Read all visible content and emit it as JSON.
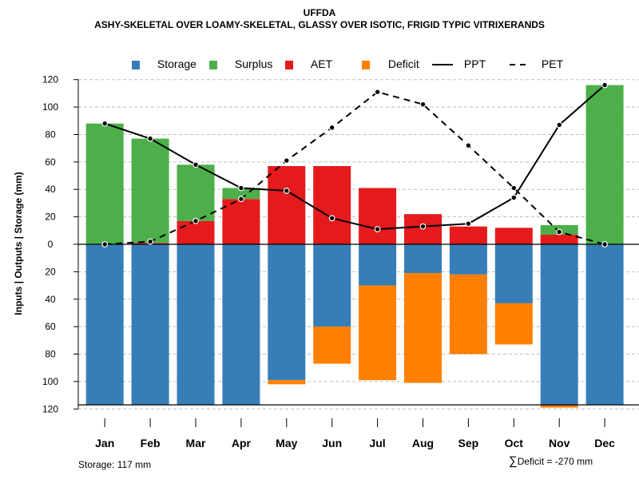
{
  "title": "UFFDA",
  "subtitle": "ASHY-SKELETAL OVER LOAMY-SKELETAL, GLASSY OVER ISOTIC, FRIGID TYPIC VITRIXERANDS",
  "legend": [
    {
      "label": "Storage",
      "color": "#377EB8",
      "kind": "box"
    },
    {
      "label": "Surplus",
      "color": "#4DAF4A",
      "kind": "box"
    },
    {
      "label": "AET",
      "color": "#E41A1C",
      "kind": "box"
    },
    {
      "label": "Deficit",
      "color": "#FF7F00",
      "kind": "box"
    },
    {
      "label": "PPT",
      "color": "#000000",
      "kind": "solid"
    },
    {
      "label": "PET",
      "color": "#000000",
      "kind": "dashed"
    }
  ],
  "y_axis_label": "Inputs | Outputs | Storage    (mm)",
  "footer": {
    "storage": "Storage: 117 mm",
    "deficit_symbol": "∑",
    "deficit": "Deficit = -270 mm"
  },
  "chart_data": {
    "type": "bar",
    "categories": [
      "Jan",
      "Feb",
      "Mar",
      "Apr",
      "May",
      "Jun",
      "Jul",
      "Aug",
      "Sep",
      "Oct",
      "Nov",
      "Dec"
    ],
    "y_tick_labels": [
      "120",
      "100",
      "80",
      "60",
      "40",
      "20",
      "0",
      "20",
      "40",
      "60",
      "80",
      "100",
      "120"
    ],
    "ylim": [
      -120,
      120
    ],
    "storage_capacity": 117,
    "series": [
      {
        "name": "Storage",
        "color": "#377EB8",
        "values": [
          117,
          117,
          117,
          117,
          99,
          60,
          30,
          21,
          22,
          43,
          117,
          117
        ]
      },
      {
        "name": "Deficit",
        "color": "#FF7F00",
        "values": [
          0,
          0,
          0,
          0,
          3,
          27,
          69,
          80,
          58,
          30,
          2,
          0
        ]
      },
      {
        "name": "AET",
        "color": "#E41A1C",
        "values": [
          0,
          1,
          17,
          33,
          57,
          57,
          41,
          22,
          13,
          12,
          7,
          0
        ]
      },
      {
        "name": "Surplus",
        "color": "#4DAF4A",
        "values": [
          88,
          76,
          41,
          8,
          0,
          0,
          0,
          0,
          0,
          0,
          7,
          116
        ]
      },
      {
        "name": "PPT",
        "color": "#000000",
        "values": [
          88,
          77,
          58,
          41,
          39,
          19,
          11,
          13,
          15,
          34,
          87,
          116
        ]
      },
      {
        "name": "PET",
        "color": "#000000",
        "values": [
          0,
          2,
          17,
          33,
          61,
          85,
          111,
          102,
          72,
          41,
          9,
          0
        ]
      }
    ]
  }
}
